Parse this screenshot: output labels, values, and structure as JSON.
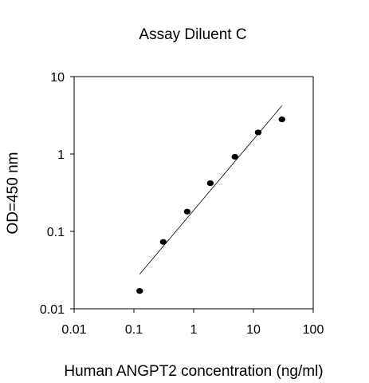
{
  "chart_data": {
    "type": "scatter",
    "title": "Assay Diluent C",
    "xlabel": "Human ANGPT2 concentration (ng/ml)",
    "ylabel": "OD=450 nm",
    "x_scale": "log",
    "y_scale": "log",
    "xlim": [
      0.01,
      100
    ],
    "ylim": [
      0.01,
      10
    ],
    "x_ticks": [
      "0.01",
      "0.1",
      "1",
      "10",
      "100"
    ],
    "y_ticks": [
      "0.01",
      "0.1",
      "1",
      "10"
    ],
    "grid": false,
    "legend": "none",
    "series": [
      {
        "x": [
          0.125,
          0.31,
          0.78,
          1.9,
          4.9,
          12,
          30
        ],
        "y": [
          0.017,
          0.073,
          0.18,
          0.42,
          0.92,
          1.9,
          2.8
        ]
      }
    ],
    "fit_line": {
      "x": [
        0.125,
        30
      ],
      "y": [
        0.028,
        4.2
      ]
    },
    "marker_color": "#000000",
    "line_color": "#000000"
  }
}
